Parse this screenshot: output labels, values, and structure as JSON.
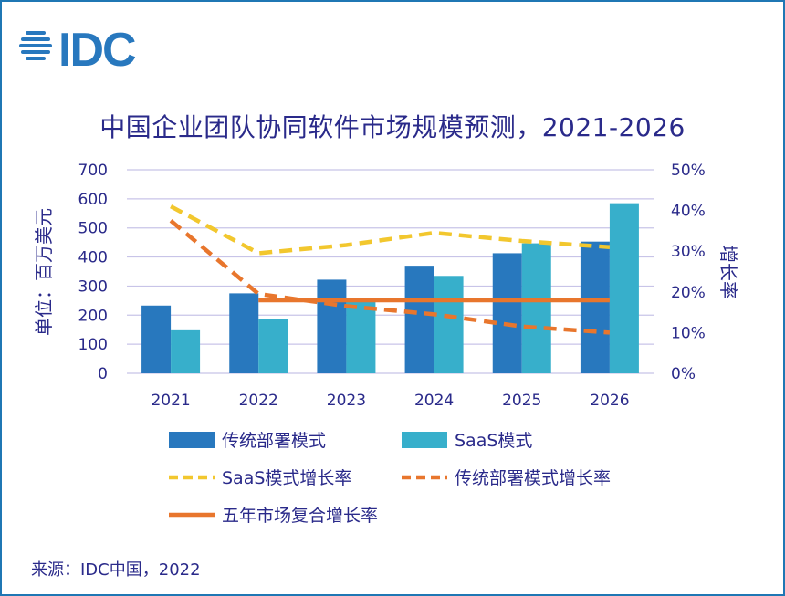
{
  "logo": {
    "text": "IDC"
  },
  "source": "来源：IDC中国，2022",
  "colors": {
    "traditional": "#2878BE",
    "saas": "#37AFCB",
    "saas_growth": "#F2C72E",
    "trad_growth": "#E8762D",
    "cagr": "#E8762D",
    "grid": "#C8C4E8",
    "text": "#2a2a8a"
  },
  "chart_data": {
    "type": "bar",
    "title": "中国企业团队协同软件市场规模预测，2021-2026",
    "categories": [
      "2021",
      "2022",
      "2023",
      "2024",
      "2025",
      "2026"
    ],
    "ylabel": "单位：百万美元",
    "y2label": "增长率",
    "ylim": [
      0,
      700
    ],
    "yticks": [
      "0",
      "100",
      "200",
      "300",
      "400",
      "500",
      "600",
      "700"
    ],
    "y2lim": [
      0,
      50
    ],
    "y2ticks": [
      "0%",
      "10%",
      "20%",
      "30%",
      "40%",
      "50%"
    ],
    "grid": true,
    "series": [
      {
        "name": "传统部署模式",
        "kind": "bar",
        "values": [
          233,
          275,
          322,
          370,
          413,
          453
        ]
      },
      {
        "name": "SaaS模式",
        "kind": "bar",
        "values": [
          148,
          188,
          258,
          335,
          447,
          585
        ]
      },
      {
        "name": "SaaS模式增长率",
        "kind": "line-dashed",
        "axis": "right",
        "values": [
          41,
          29.5,
          31.5,
          34.5,
          32.5,
          31
        ]
      },
      {
        "name": "传统部署模式增长率",
        "kind": "line-dashed",
        "axis": "right",
        "values": [
          37.5,
          19.5,
          16.5,
          14.5,
          11.5,
          10
        ]
      },
      {
        "name": "五年市场复合增长率",
        "kind": "line",
        "axis": "right",
        "values": [
          null,
          18,
          18,
          18,
          18,
          18
        ]
      }
    ]
  }
}
